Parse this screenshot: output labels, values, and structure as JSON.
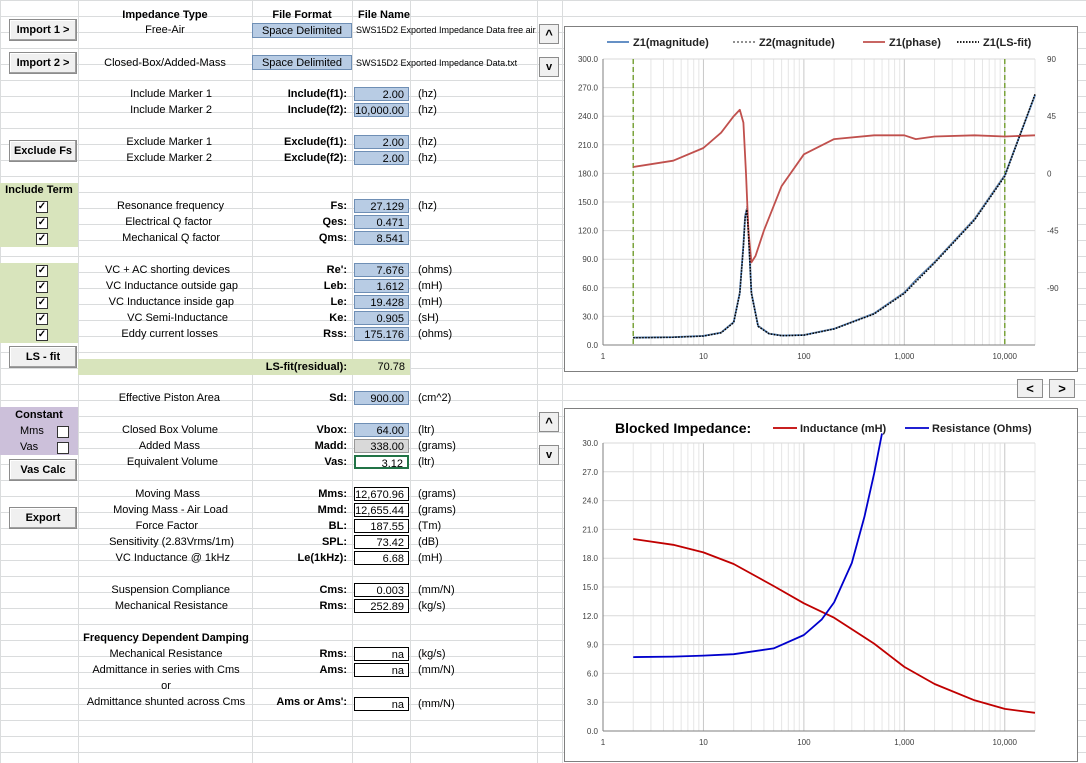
{
  "buttons": {
    "import1": "Import 1 >",
    "import2": "Import 2 >",
    "exclude_fs": "Exclude Fs",
    "ls_fit": "LS - fit",
    "vas_calc": "Vas Calc",
    "export": "Export",
    "scroll_up": "^",
    "scroll_down": "v",
    "chart_prev": "<",
    "chart_next": ">"
  },
  "header": {
    "impedance_type": "Impedance Type",
    "file_format": "File Format",
    "file_name": "File Name"
  },
  "imports": [
    {
      "type": "Free-Air",
      "format": "Space Delimited",
      "file": "SWS15D2 Exported Impedance Data free air."
    },
    {
      "type": "Closed-Box/Added-Mass",
      "format": "Space Delimited",
      "file": "SWS15D2 Exported Impedance Data.txt"
    }
  ],
  "include_markers": [
    {
      "label": "Include Marker 1",
      "param": "Include(f1):",
      "value": "2.00",
      "unit": "(hz)"
    },
    {
      "label": "Include Marker 2",
      "param": "Include(f2):",
      "value": "10,000.00",
      "unit": "(hz)"
    }
  ],
  "exclude_markers": [
    {
      "label": "Exclude Marker 1",
      "param": "Exclude(f1):",
      "value": "2.00",
      "unit": "(hz)"
    },
    {
      "label": "Exclude Marker 2",
      "param": "Exclude(f2):",
      "value": "2.00",
      "unit": "(hz)"
    }
  ],
  "include_term_label": "Include Term",
  "check_mark": "✓",
  "params_a": [
    {
      "label": "Resonance frequency",
      "param": "Fs:",
      "value": "27.129",
      "unit": "(hz)"
    },
    {
      "label": "Electrical Q factor",
      "param": "Qes:",
      "value": "0.471",
      "unit": ""
    },
    {
      "label": "Mechanical Q factor",
      "param": "Qms:",
      "value": "8.541",
      "unit": ""
    }
  ],
  "params_b": [
    {
      "label": "VC + AC shorting devices",
      "param": "Re':",
      "value": "7.676",
      "unit": "(ohms)"
    },
    {
      "label": "VC Inductance outside gap",
      "param": "Leb:",
      "value": "1.612",
      "unit": "(mH)"
    },
    {
      "label": "VC Inductance inside gap",
      "param": "Le:",
      "value": "19.428",
      "unit": "(mH)"
    },
    {
      "label": "VC Semi-Inductance",
      "param": "Ke:",
      "value": "0.905",
      "unit": "(sH)"
    },
    {
      "label": "Eddy current losses",
      "param": "Rss:",
      "value": "175.176",
      "unit": "(ohms)"
    }
  ],
  "ls_fit": {
    "label": "LS-fit(residual):",
    "value": "70.78"
  },
  "piston": {
    "label": "Effective Piston Area",
    "param": "Sd:",
    "value": "900.00",
    "unit": "(cm^2)"
  },
  "constant": {
    "title": "Constant",
    "mms": "Mms",
    "vas": "Vas"
  },
  "box_params": [
    {
      "label": "Closed Box Volume",
      "param": "Vbox:",
      "value": "64.00",
      "unit": "(ltr)"
    },
    {
      "label": "Added Mass",
      "param": "Madd:",
      "value": "338.00",
      "unit": "(grams)"
    },
    {
      "label": "Equivalent Volume",
      "param": "Vas:",
      "value": "3.12",
      "unit": "(ltr)"
    }
  ],
  "derived": [
    {
      "label": "Moving Mass",
      "param": "Mms:",
      "value": "12,670.96",
      "unit": "(grams)"
    },
    {
      "label": "Moving Mass - Air Load",
      "param": "Mmd:",
      "value": "12,655.44",
      "unit": "(grams)"
    },
    {
      "label": "Force Factor",
      "param": "BL:",
      "value": "187.55",
      "unit": "(Tm)"
    },
    {
      "label": "Sensitivity (2.83Vrms/1m)",
      "param": "SPL:",
      "value": "73.42",
      "unit": "(dB)"
    },
    {
      "label": "VC Inductance @ 1kHz",
      "param": "Le(1kHz):",
      "value": "6.68",
      "unit": "(mH)"
    }
  ],
  "suspension": [
    {
      "label": "Suspension Compliance",
      "param": "Cms:",
      "value": "0.003",
      "unit": "(mm/N)"
    },
    {
      "label": "Mechanical Resistance",
      "param": "Rms:",
      "value": "252.89",
      "unit": "(kg/s)"
    }
  ],
  "fdd": {
    "title": "Frequency Dependent Damping",
    "rows": [
      {
        "label": "Mechanical Resistance",
        "param": "Rms:",
        "value": "na",
        "unit": "(kg/s)"
      },
      {
        "label": "Admittance in series with Cms",
        "param": "Ams:",
        "value": "na",
        "unit": "(mm/N)"
      },
      {
        "label": "or",
        "param": "",
        "value": "",
        "unit": ""
      },
      {
        "label": "Admittance shunted across Cms",
        "param": "Ams or Ams':",
        "value": "na",
        "unit": "(mm/N)"
      }
    ]
  },
  "chart_data": [
    {
      "type": "line",
      "title": "",
      "x_scale": "log",
      "xlim": [
        1,
        20000
      ],
      "ylim": [
        0,
        300
      ],
      "y2lim": [
        -135,
        90
      ],
      "x_ticks": [
        "1",
        "10",
        "100",
        "1,000",
        "10,000"
      ],
      "y_ticks": [
        "0.0",
        "30.0",
        "60.0",
        "90.0",
        "120.0",
        "150.0",
        "180.0",
        "210.0",
        "240.0",
        "270.0",
        "300.0"
      ],
      "y2_ticks": [
        "-90",
        "-45",
        "0",
        "45",
        "90"
      ],
      "legend_position": "top",
      "markers_x": [
        2,
        10000
      ],
      "series": [
        {
          "name": "Z1(magnitude)",
          "color": "#4f81bd",
          "axis": "left",
          "x": [
            2,
            5,
            10,
            15,
            20,
            23,
            25,
            26,
            27.1,
            28,
            30,
            35,
            45,
            60,
            100,
            200,
            500,
            1000,
            1300,
            2000,
            5000,
            10000,
            20000
          ],
          "y": [
            7.8,
            8.3,
            9.5,
            13,
            24,
            55,
            105,
            135,
            143,
            120,
            55,
            20,
            12,
            10,
            10.5,
            17,
            33,
            55,
            68,
            87,
            132,
            178,
            262
          ]
        },
        {
          "name": "Z2(magnitude)",
          "color": "#808080",
          "axis": "left",
          "x": [
            2,
            5,
            10,
            15,
            20,
            23,
            25,
            26,
            27.1,
            28,
            30,
            35,
            45,
            60,
            100,
            200,
            500,
            1000,
            1300,
            2000,
            5000,
            10000,
            20000
          ],
          "y": [
            8,
            8.5,
            9.7,
            13.3,
            24.5,
            56,
            107,
            137,
            146,
            122,
            56,
            20.5,
            12.2,
            10.2,
            10.7,
            17.3,
            33.5,
            55.5,
            68.5,
            87.5,
            133,
            179,
            263
          ]
        },
        {
          "name": "Z1(phase)",
          "color": "#c0504d",
          "axis": "right",
          "x": [
            2,
            5,
            10,
            15,
            20,
            23,
            25,
            26.5,
            28,
            30,
            33,
            40,
            60,
            100,
            200,
            500,
            1000,
            1300,
            2000,
            5000,
            10000,
            20000
          ],
          "y": [
            5,
            10,
            20,
            32,
            45,
            50,
            40,
            0,
            -45,
            -70,
            -65,
            -45,
            -10,
            15,
            27,
            30,
            30,
            27,
            29,
            30,
            29,
            30
          ]
        },
        {
          "name": "Z1(LS-fit)",
          "color": "#000000",
          "axis": "left",
          "x": [
            2,
            5,
            10,
            15,
            20,
            23,
            25,
            26,
            27.1,
            28,
            30,
            35,
            45,
            60,
            100,
            200,
            500,
            1000,
            2000,
            5000,
            10000,
            20000
          ],
          "y": [
            7.6,
            8.1,
            9.3,
            12.8,
            23.5,
            54,
            103,
            133,
            142,
            118,
            54,
            19.5,
            11.8,
            9.8,
            10.3,
            16.8,
            32.5,
            54,
            86,
            131,
            177,
            263
          ]
        }
      ]
    },
    {
      "type": "line",
      "title": "Blocked Impedance:",
      "x_scale": "log",
      "xlim": [
        1,
        20000
      ],
      "ylim": [
        0,
        30
      ],
      "x_ticks": [
        "1",
        "10",
        "100",
        "1,000",
        "10,000"
      ],
      "y_ticks": [
        "0.0",
        "3.0",
        "6.0",
        "9.0",
        "12.0",
        "15.0",
        "18.0",
        "21.0",
        "24.0",
        "27.0",
        "30.0"
      ],
      "legend_position": "top",
      "series": [
        {
          "name": "Inductance (mH)",
          "color": "#c00000",
          "x": [
            2,
            5,
            10,
            20,
            50,
            100,
            200,
            500,
            1000,
            2000,
            5000,
            10000,
            20000
          ],
          "y": [
            20,
            19.4,
            18.6,
            17.4,
            15.1,
            13.3,
            11.8,
            9.1,
            6.68,
            4.9,
            3.2,
            2.3,
            1.9
          ]
        },
        {
          "name": "Resistance (Ohms)",
          "color": "#0000cc",
          "x": [
            2,
            5,
            10,
            20,
            50,
            100,
            150,
            200,
            300,
            400,
            500,
            600
          ],
          "y": [
            7.7,
            7.75,
            7.85,
            8.0,
            8.6,
            10.0,
            11.6,
            13.4,
            17.5,
            22.3,
            26.8,
            31
          ]
        }
      ]
    }
  ]
}
